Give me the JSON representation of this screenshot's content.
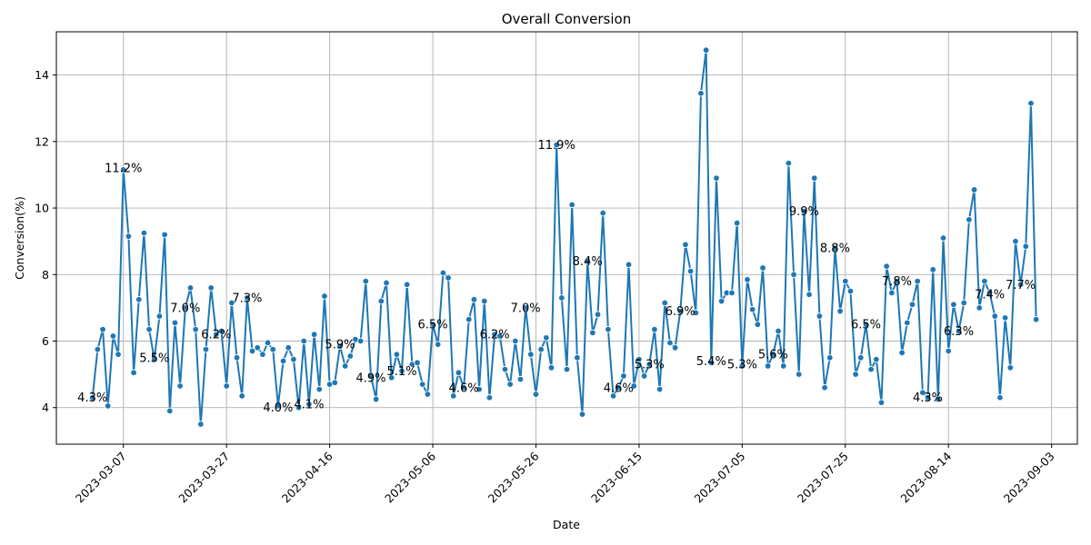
{
  "chart_data": {
    "type": "line",
    "title": "Overall Conversion",
    "xlabel": "Date",
    "ylabel": "Conversion(%)",
    "x_start": "2023-03-01",
    "x_step_days": 1,
    "xlim": [
      "2023-02-22",
      "2023-09-08"
    ],
    "ylim": [
      2.9,
      15.3
    ],
    "xticks": [
      "2023-03-07",
      "2023-03-27",
      "2023-04-16",
      "2023-05-06",
      "2023-05-26",
      "2023-06-15",
      "2023-07-05",
      "2023-07-25",
      "2023-08-14",
      "2023-09-03"
    ],
    "yticks": [
      4,
      6,
      8,
      10,
      12,
      14
    ],
    "grid": true,
    "line_color": "#1f77b4",
    "series": [
      {
        "values": [
          4.3,
          5.75,
          6.35,
          4.05,
          6.15,
          5.6,
          11.15,
          9.15,
          5.05,
          7.25,
          9.25,
          6.35,
          5.45,
          6.75,
          9.2,
          3.9,
          6.55,
          4.65,
          7.0,
          7.6,
          6.35,
          3.5,
          5.75,
          7.6,
          6.2,
          6.3,
          4.65,
          7.15,
          5.5,
          4.35,
          7.3,
          5.7,
          5.8,
          5.6,
          5.95,
          5.75,
          4.05,
          5.4,
          5.8,
          5.45,
          4.0,
          6.0,
          4.1,
          6.2,
          4.55,
          7.35,
          4.7,
          4.75,
          5.85,
          5.25,
          5.55,
          6.05,
          6.0,
          7.8,
          4.95,
          4.25,
          7.2,
          7.75,
          4.9,
          5.6,
          5.1,
          7.7,
          5.3,
          5.35,
          4.7,
          4.4,
          6.5,
          5.9,
          8.05,
          7.9,
          4.35,
          5.05,
          4.6,
          6.65,
          7.25,
          4.55,
          7.2,
          4.3,
          6.2,
          6.15,
          5.15,
          4.7,
          6.0,
          4.85,
          7.0,
          5.6,
          4.4,
          5.75,
          6.1,
          5.2,
          11.9,
          7.3,
          5.15,
          10.1,
          5.5,
          3.8,
          8.4,
          6.25,
          6.8,
          9.85,
          6.35,
          4.35,
          4.6,
          4.95,
          8.3,
          4.65,
          5.45,
          4.95,
          5.3,
          6.35,
          4.55,
          7.15,
          5.95,
          5.8,
          6.9,
          8.9,
          8.1,
          6.85,
          13.45,
          14.75,
          5.35,
          10.9,
          7.2,
          7.45,
          7.45,
          9.55,
          5.25,
          7.85,
          6.95,
          6.5,
          8.2,
          5.25,
          5.6,
          6.3,
          5.25,
          11.35,
          8.0,
          5.0,
          9.9,
          7.4,
          10.9,
          6.75,
          4.6,
          5.5,
          8.8,
          6.9,
          7.8,
          7.5,
          5.0,
          5.5,
          6.5,
          5.15,
          5.45,
          4.15,
          8.25,
          7.45,
          7.8,
          5.65,
          6.55,
          7.1,
          7.8,
          4.45,
          4.3,
          8.15,
          4.25,
          9.1,
          5.7,
          7.1,
          6.3,
          7.15,
          9.65,
          10.55,
          7.0,
          7.8,
          7.45,
          6.75,
          4.3,
          6.7,
          5.2,
          9.0,
          7.7,
          8.85,
          13.15,
          6.65
        ]
      }
    ],
    "annotations": [
      {
        "date": "2023-03-01",
        "value": 4.3,
        "text": "4.3%"
      },
      {
        "date": "2023-03-07",
        "value": 11.2,
        "text": "11.2%"
      },
      {
        "date": "2023-03-13",
        "value": 5.5,
        "text": "5.5%"
      },
      {
        "date": "2023-03-19",
        "value": 7.0,
        "text": "7.0%"
      },
      {
        "date": "2023-03-25",
        "value": 6.2,
        "text": "6.2%"
      },
      {
        "date": "2023-03-31",
        "value": 7.3,
        "text": "7.3%"
      },
      {
        "date": "2023-04-06",
        "value": 4.0,
        "text": "4.0%"
      },
      {
        "date": "2023-04-12",
        "value": 4.1,
        "text": "4.1%"
      },
      {
        "date": "2023-04-18",
        "value": 5.9,
        "text": "5.9%"
      },
      {
        "date": "2023-04-24",
        "value": 4.9,
        "text": "4.9%"
      },
      {
        "date": "2023-04-30",
        "value": 5.1,
        "text": "5.1%"
      },
      {
        "date": "2023-05-06",
        "value": 6.5,
        "text": "6.5%"
      },
      {
        "date": "2023-05-12",
        "value": 4.6,
        "text": "4.6%"
      },
      {
        "date": "2023-05-18",
        "value": 6.2,
        "text": "6.2%"
      },
      {
        "date": "2023-05-24",
        "value": 7.0,
        "text": "7.0%"
      },
      {
        "date": "2023-05-30",
        "value": 11.9,
        "text": "11.9%"
      },
      {
        "date": "2023-06-05",
        "value": 8.4,
        "text": "8.4%"
      },
      {
        "date": "2023-06-11",
        "value": 4.6,
        "text": "4.6%"
      },
      {
        "date": "2023-06-17",
        "value": 5.3,
        "text": "5.3%"
      },
      {
        "date": "2023-06-23",
        "value": 6.9,
        "text": "6.9%"
      },
      {
        "date": "2023-06-29",
        "value": 5.4,
        "text": "5.4%"
      },
      {
        "date": "2023-07-05",
        "value": 5.3,
        "text": "5.3%"
      },
      {
        "date": "2023-07-11",
        "value": 5.6,
        "text": "5.6%"
      },
      {
        "date": "2023-07-17",
        "value": 9.9,
        "text": "9.9%"
      },
      {
        "date": "2023-07-23",
        "value": 8.8,
        "text": "8.8%"
      },
      {
        "date": "2023-07-29",
        "value": 6.5,
        "text": "6.5%"
      },
      {
        "date": "2023-08-04",
        "value": 7.8,
        "text": "7.8%"
      },
      {
        "date": "2023-08-10",
        "value": 4.3,
        "text": "4.3%"
      },
      {
        "date": "2023-08-16",
        "value": 6.3,
        "text": "6.3%"
      },
      {
        "date": "2023-08-22",
        "value": 7.4,
        "text": "7.4%"
      },
      {
        "date": "2023-08-28",
        "value": 7.7,
        "text": "7.7%"
      }
    ]
  }
}
